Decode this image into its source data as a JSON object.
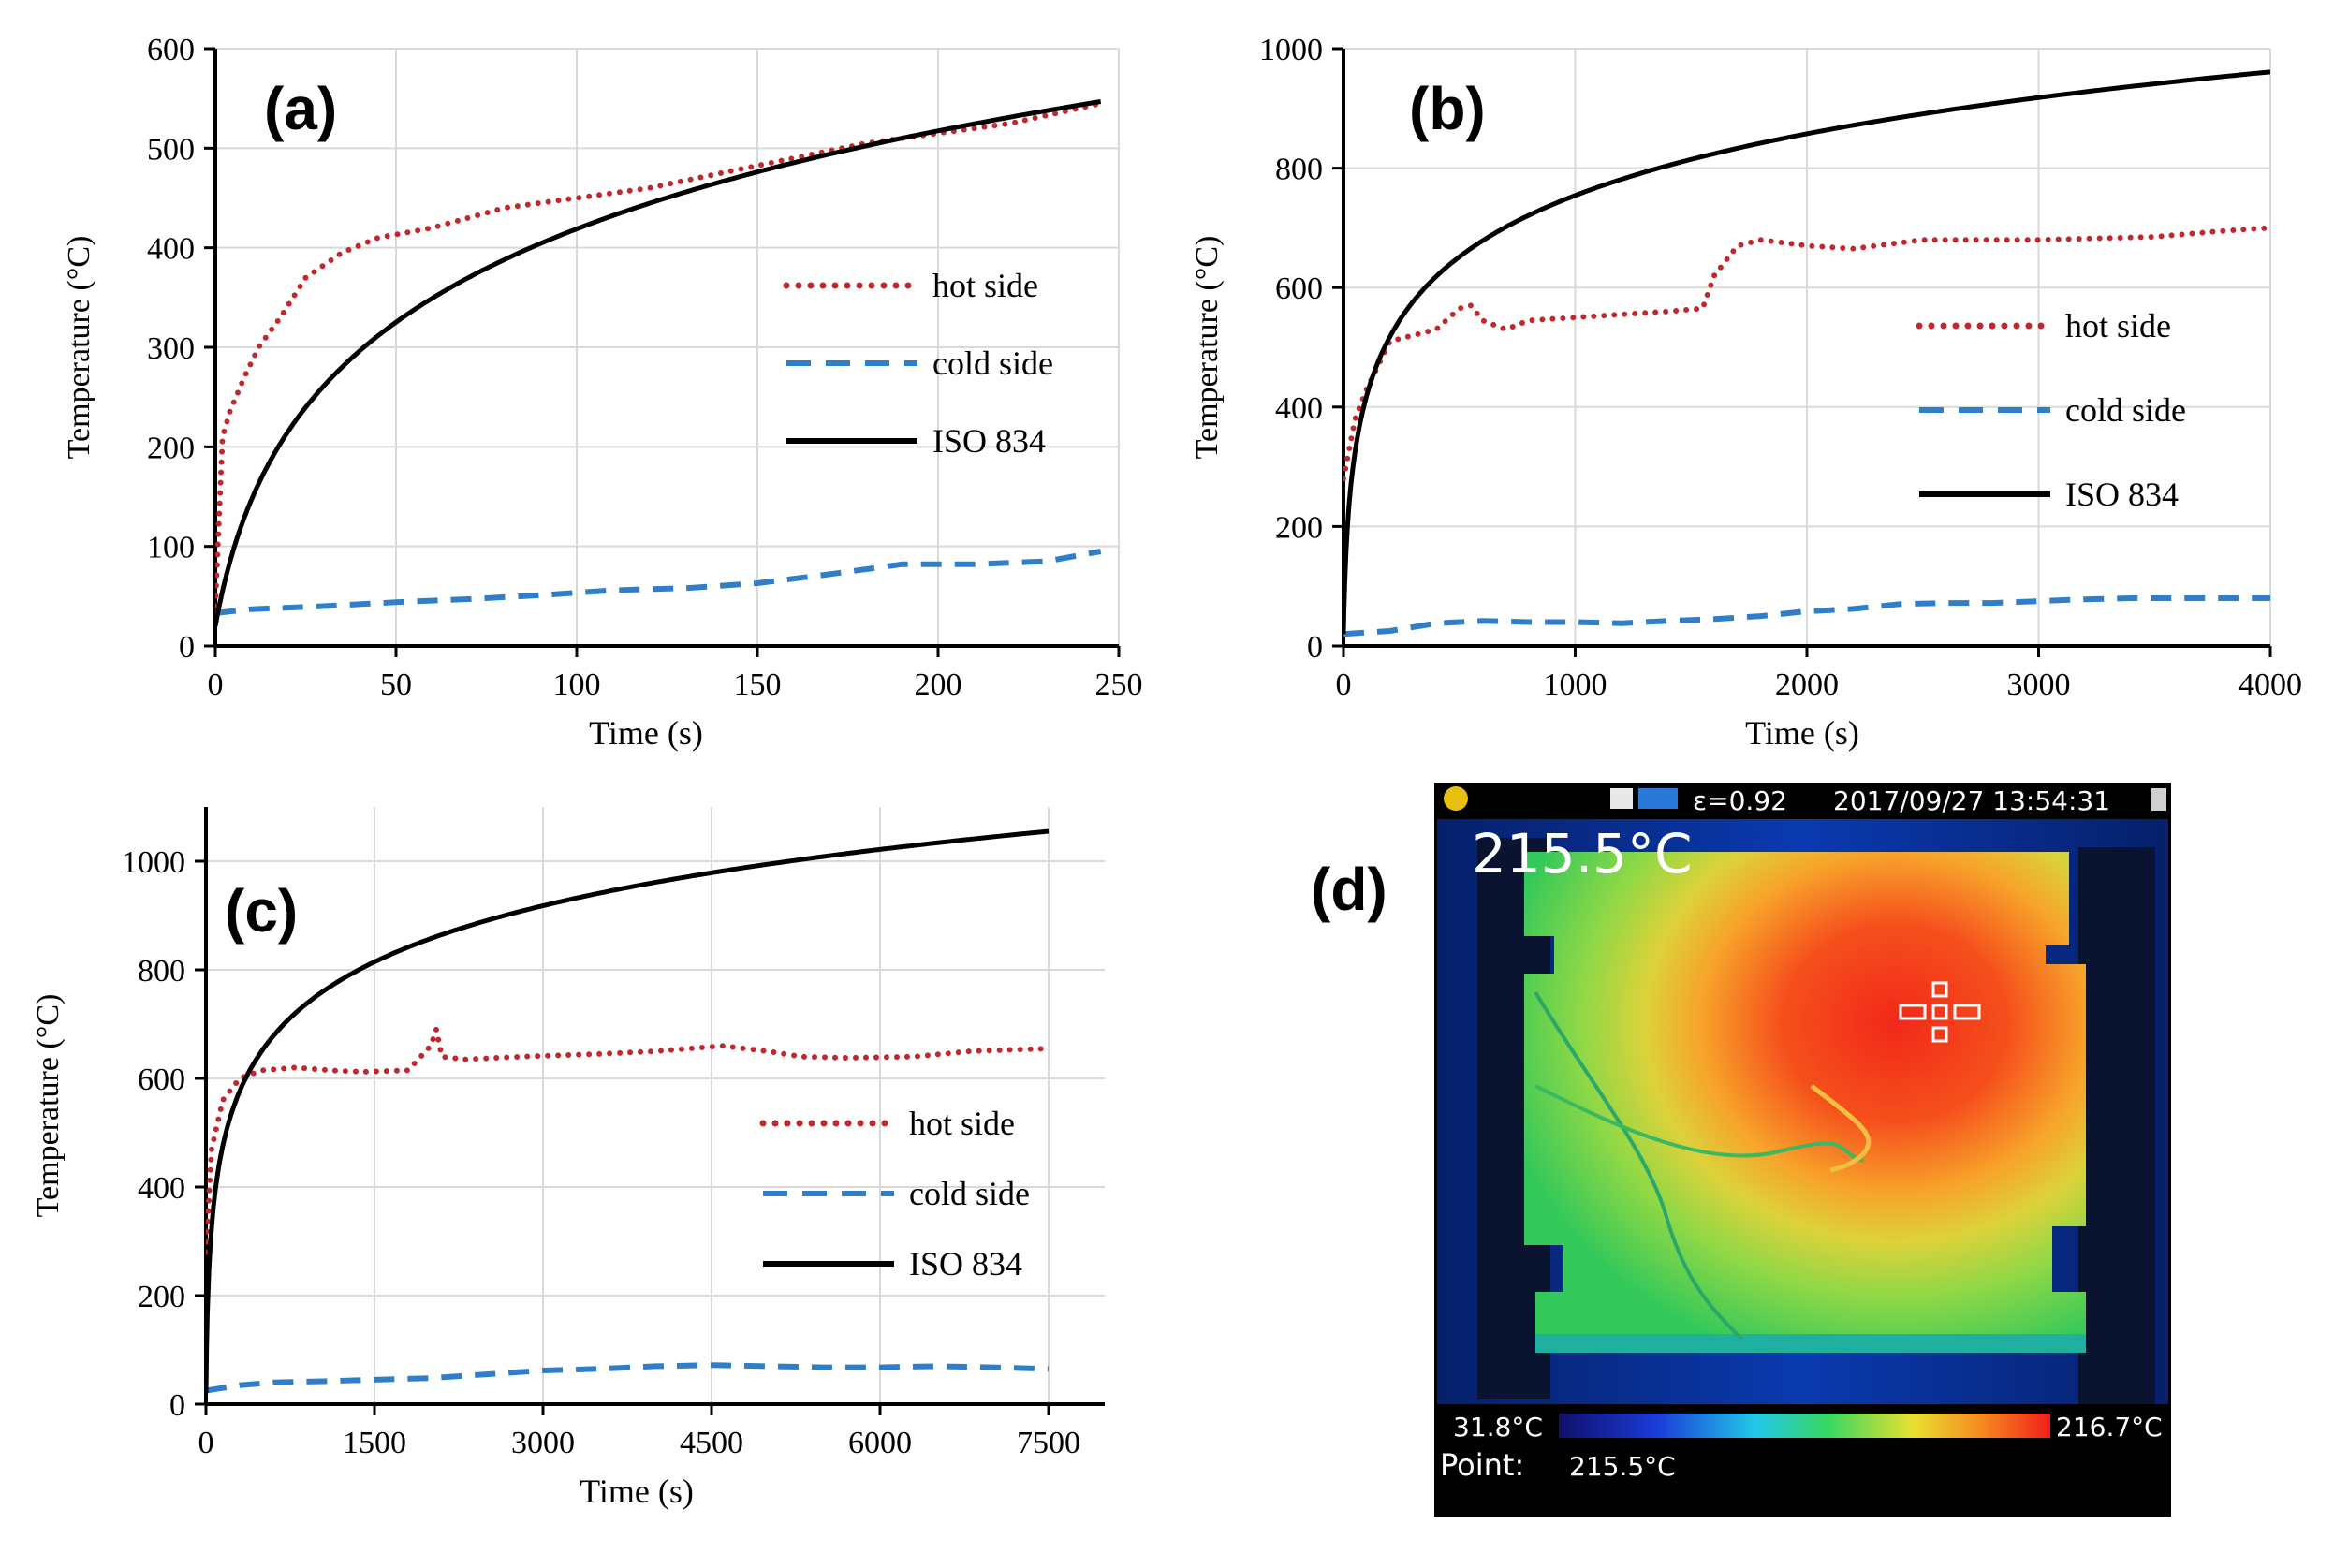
{
  "chart_data": [
    {
      "panel_label": "(a)",
      "type": "line",
      "xlabel": "Time (s)",
      "ylabel": "Temperature (°C)",
      "xlim": [
        0,
        250
      ],
      "ylim": [
        0,
        600
      ],
      "xticks": [
        0,
        50,
        100,
        150,
        200,
        250
      ],
      "yticks": [
        0,
        100,
        200,
        300,
        400,
        500,
        600
      ],
      "legend": [
        "hot side",
        "cold side",
        "ISO 834"
      ],
      "series": [
        {
          "name": "hot side",
          "style": "dotted",
          "color": "#c0282d",
          "x": [
            0,
            2,
            4,
            8,
            12,
            18,
            25,
            35,
            45,
            60,
            80,
            100,
            120,
            140,
            160,
            180,
            200,
            220,
            245
          ],
          "y": [
            40,
            210,
            235,
            270,
            300,
            330,
            370,
            395,
            410,
            420,
            440,
            450,
            460,
            475,
            490,
            505,
            515,
            525,
            545
          ]
        },
        {
          "name": "cold side",
          "style": "dashed",
          "color": "#2f7fc8",
          "x": [
            0,
            10,
            30,
            50,
            70,
            90,
            110,
            130,
            150,
            170,
            190,
            210,
            230,
            245
          ],
          "y": [
            33,
            37,
            40,
            44,
            47,
            51,
            56,
            58,
            63,
            72,
            82,
            82,
            85,
            95
          ]
        },
        {
          "name": "ISO 834",
          "style": "solid",
          "color": "#000000",
          "formula": "iso834",
          "x_max": 245
        }
      ]
    },
    {
      "panel_label": "(b)",
      "type": "line",
      "xlabel": "Time (s)",
      "ylabel": "Temperature (°C)",
      "xlim": [
        0,
        4000
      ],
      "ylim": [
        0,
        1000
      ],
      "xticks": [
        0,
        1000,
        2000,
        3000,
        4000
      ],
      "yticks": [
        0,
        200,
        400,
        600,
        800,
        1000
      ],
      "legend": [
        "hot side",
        "cold side",
        "ISO 834"
      ],
      "series": [
        {
          "name": "hot side",
          "style": "dotted",
          "color": "#c0282d",
          "x": [
            0,
            50,
            100,
            200,
            300,
            400,
            500,
            550,
            600,
            700,
            800,
            1000,
            1200,
            1400,
            1550,
            1600,
            1700,
            1800,
            2000,
            2200,
            2500,
            3000,
            3500,
            3800,
            4000
          ],
          "y": [
            280,
            380,
            430,
            510,
            520,
            530,
            565,
            570,
            545,
            530,
            545,
            550,
            555,
            560,
            565,
            620,
            670,
            680,
            670,
            665,
            680,
            680,
            685,
            695,
            700
          ]
        },
        {
          "name": "cold side",
          "style": "dashed",
          "color": "#2f7fc8",
          "x": [
            0,
            200,
            400,
            600,
            800,
            1000,
            1200,
            1400,
            1600,
            1800,
            2000,
            2200,
            2400,
            2600,
            2800,
            3000,
            3200,
            3400,
            3600,
            3800,
            4000
          ],
          "y": [
            20,
            25,
            38,
            42,
            40,
            40,
            38,
            42,
            45,
            50,
            58,
            62,
            70,
            72,
            72,
            75,
            78,
            80,
            80,
            80,
            80
          ]
        },
        {
          "name": "ISO 834",
          "style": "solid",
          "color": "#000000",
          "formula": "iso834",
          "x_max": 4000
        }
      ]
    },
    {
      "panel_label": "(c)",
      "type": "line",
      "xlabel": "Time (s)",
      "ylabel": "Temperature (°C)",
      "xlim": [
        0,
        8000
      ],
      "ylim": [
        0,
        1100
      ],
      "xticks": [
        0,
        1500,
        3000,
        4500,
        6000,
        7500
      ],
      "yticks": [
        0,
        200,
        400,
        600,
        800,
        1000
      ],
      "legend": [
        "hot side",
        "cold side",
        "ISO 834"
      ],
      "series": [
        {
          "name": "hot side",
          "style": "dotted",
          "color": "#c0282d",
          "x": [
            0,
            50,
            150,
            300,
            500,
            800,
            1100,
            1400,
            1800,
            2000,
            2050,
            2100,
            2300,
            2800,
            3500,
            4000,
            4600,
            5000,
            5300,
            5700,
            6300,
            6800,
            7500
          ],
          "y": [
            280,
            470,
            560,
            600,
            615,
            620,
            615,
            612,
            615,
            660,
            690,
            640,
            635,
            640,
            645,
            650,
            660,
            650,
            640,
            638,
            640,
            650,
            655
          ]
        },
        {
          "name": "cold side",
          "style": "dashed",
          "color": "#2f7fc8",
          "x": [
            0,
            300,
            600,
            1000,
            1500,
            2000,
            2500,
            3000,
            3500,
            4000,
            4500,
            5000,
            5500,
            6000,
            6500,
            7000,
            7500
          ],
          "y": [
            25,
            35,
            40,
            42,
            45,
            48,
            55,
            62,
            65,
            70,
            72,
            70,
            68,
            68,
            70,
            68,
            65
          ]
        },
        {
          "name": "ISO 834",
          "style": "solid",
          "color": "#000000",
          "formula": "iso834",
          "x_max": 7500
        }
      ]
    }
  ],
  "thermal_image": {
    "panel_label": "(d)",
    "status_bar": {
      "emissivity": "ε=0.92",
      "datetime": "2017/09/27 13:54:31"
    },
    "spot_temperature": "215.5°C",
    "scale_min": "31.8°C",
    "scale_max": "216.7°C",
    "point_label": "Point:",
    "point_value": "215.5°C"
  }
}
